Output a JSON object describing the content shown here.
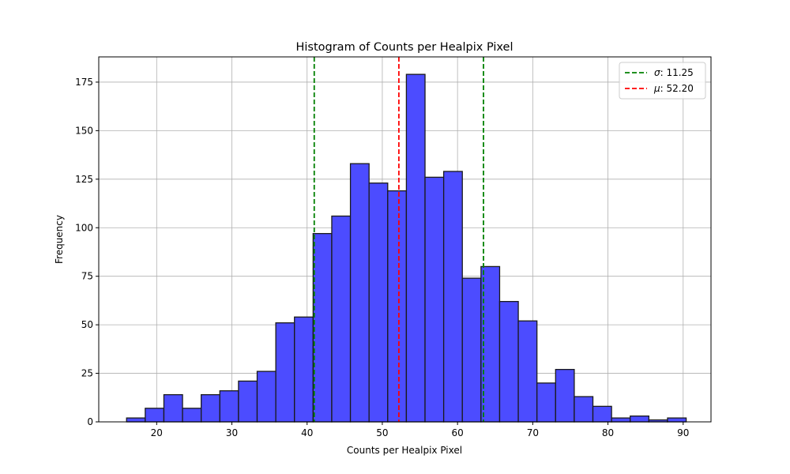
{
  "chart_data": {
    "type": "bar",
    "title": "Histogram of Counts per Healpix Pixel",
    "xlabel": "Counts per Healpix Pixel",
    "ylabel": "Frequency",
    "xlim": [
      12.3,
      93.7
    ],
    "ylim": [
      0,
      188
    ],
    "xticks": [
      20,
      30,
      40,
      50,
      60,
      70,
      80,
      90
    ],
    "yticks": [
      0,
      25,
      50,
      75,
      100,
      125,
      150,
      175
    ],
    "grid": true,
    "legend_position": "top-right",
    "bins": {
      "start": 16,
      "width": 2.48,
      "values": [
        2,
        7,
        14,
        7,
        14,
        16,
        21,
        26,
        51,
        54,
        97,
        106,
        133,
        123,
        119,
        179,
        126,
        129,
        74,
        80,
        62,
        52,
        20,
        27,
        13,
        8,
        2,
        3,
        1,
        2
      ]
    },
    "bar_color": "#4c4cff",
    "bar_edge_color": "#1a1a1a",
    "reference_lines": [
      {
        "label_symbol": "σ",
        "label_value": ": 11.25",
        "x_values": [
          40.95,
          63.45
        ],
        "color": "#008000",
        "style": "dashed"
      },
      {
        "label_symbol": "μ",
        "label_value": ": 52.20",
        "x_values": [
          52.2
        ],
        "color": "#ff0000",
        "style": "dashed"
      }
    ]
  }
}
